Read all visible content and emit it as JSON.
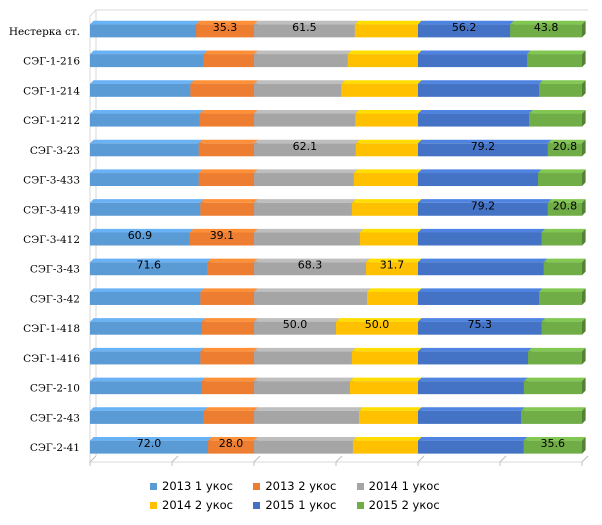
{
  "chart_data": {
    "type": "bar",
    "orientation": "horizontal",
    "stacked": "percent-per-year",
    "categories": [
      "Нестерка ст.",
      "СЭГ-1-216",
      "СЭГ-1-214",
      "СЭГ-1-212",
      "СЭГ-3-23",
      "СЭГ-3-433",
      "СЭГ-3-419",
      "СЭГ-3-412",
      "СЭГ-3-43",
      "СЭГ-3-42",
      "СЭГ-1-418",
      "СЭГ-1-416",
      "СЭГ-2-10",
      "СЭГ-2-43",
      "СЭГ-2-41"
    ],
    "series": [
      {
        "name": "2013 1 укос",
        "color": "#5b9bd5",
        "values": [
          64.7,
          69.4,
          61.2,
          67.0,
          66.3,
          66.3,
          67.3,
          60.9,
          71.6,
          67.3,
          68.0,
          67.3,
          68.0,
          69.4,
          72.0
        ]
      },
      {
        "name": "2013 2 укос",
        "color": "#ed7d31",
        "values": [
          35.3,
          30.6,
          38.8,
          33.0,
          33.7,
          33.7,
          32.7,
          39.1,
          28.4,
          32.7,
          32.0,
          32.7,
          32.0,
          30.6,
          28.0
        ]
      },
      {
        "name": "2014 1 укос",
        "color": "#a5a5a5",
        "values": [
          61.5,
          57.2,
          53.2,
          61.8,
          62.1,
          60.9,
          59.7,
          64.6,
          68.3,
          68.9,
          50.0,
          59.7,
          58.5,
          64.0,
          60.3
        ]
      },
      {
        "name": "2014 2 укос",
        "color": "#ffc000",
        "values": [
          38.5,
          42.8,
          46.8,
          38.2,
          37.9,
          39.1,
          40.3,
          35.4,
          31.7,
          31.1,
          50.0,
          40.3,
          41.5,
          36.0,
          39.7
        ]
      },
      {
        "name": "2015 1 укос",
        "color": "#4472c4",
        "values": [
          56.2,
          66.5,
          73.8,
          67.7,
          79.2,
          73.2,
          79.2,
          75.3,
          76.6,
          73.8,
          75.3,
          67.1,
          64.6,
          62.8,
          64.4
        ]
      },
      {
        "name": "2015 2 укос",
        "color": "#70ad47",
        "values": [
          43.8,
          33.5,
          26.2,
          32.3,
          20.8,
          26.8,
          20.8,
          24.7,
          23.4,
          26.2,
          24.7,
          32.9,
          35.4,
          37.2,
          35.6
        ]
      }
    ],
    "data_labels": [
      {
        "category": 0,
        "series": 1,
        "text": "35.3"
      },
      {
        "category": 0,
        "series": 2,
        "text": "61.5"
      },
      {
        "category": 0,
        "series": 4,
        "text": "56.2"
      },
      {
        "category": 0,
        "series": 5,
        "text": "43.8"
      },
      {
        "category": 4,
        "series": 2,
        "text": "62.1"
      },
      {
        "category": 4,
        "series": 4,
        "text": "79.2"
      },
      {
        "category": 4,
        "series": 5,
        "text": "20.8"
      },
      {
        "category": 6,
        "series": 4,
        "text": "79.2"
      },
      {
        "category": 6,
        "series": 5,
        "text": "20.8"
      },
      {
        "category": 7,
        "series": 0,
        "text": "60.9"
      },
      {
        "category": 7,
        "series": 1,
        "text": "39.1"
      },
      {
        "category": 8,
        "series": 0,
        "text": "71.6"
      },
      {
        "category": 8,
        "series": 2,
        "text": "68.3"
      },
      {
        "category": 8,
        "series": 3,
        "text": "31.7"
      },
      {
        "category": 10,
        "series": 2,
        "text": "50.0"
      },
      {
        "category": 10,
        "series": 3,
        "text": "50.0"
      },
      {
        "category": 10,
        "series": 4,
        "text": "75.3"
      },
      {
        "category": 14,
        "series": 0,
        "text": "72.0"
      },
      {
        "category": 14,
        "series": 1,
        "text": "28.0"
      },
      {
        "category": 14,
        "series": 5,
        "text": "35.6"
      }
    ],
    "xlim": [
      0,
      300
    ],
    "grid": true,
    "legend_position": "bottom",
    "title": "",
    "xlabel": "",
    "ylabel": ""
  }
}
